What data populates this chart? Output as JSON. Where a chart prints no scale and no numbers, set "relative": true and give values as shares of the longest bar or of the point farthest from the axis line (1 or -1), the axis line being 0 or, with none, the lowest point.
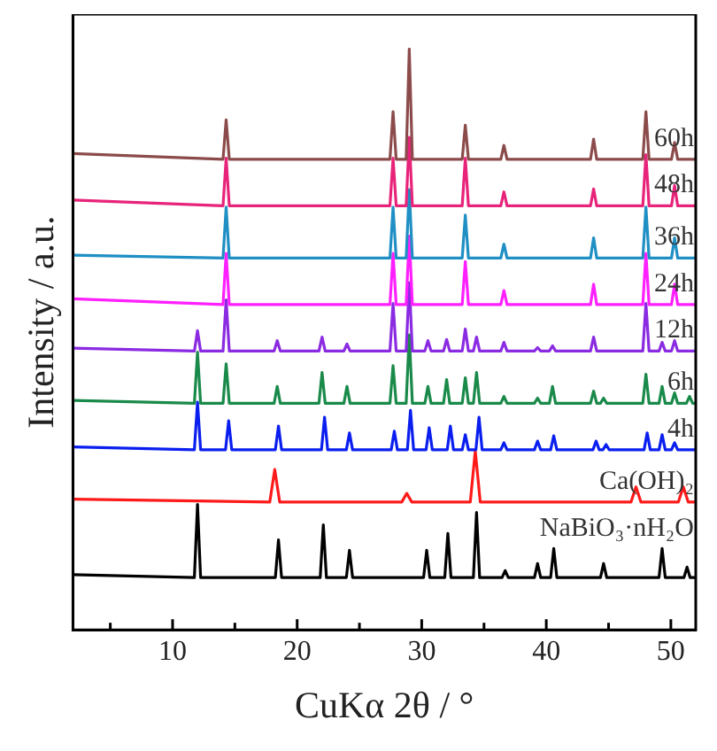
{
  "chart_data": {
    "type": "line",
    "xlabel": "CuKα 2θ / °",
    "ylabel": "Intensity / a.u.",
    "relative": true,
    "xlim": [
      2,
      52
    ],
    "xticks": [
      {
        "value": 5,
        "label": null
      },
      10,
      {
        "value": 15,
        "label": null
      },
      20,
      {
        "value": 25,
        "label": null
      },
      30,
      {
        "value": 35,
        "label": null
      },
      40,
      {
        "value": 45,
        "label": null
      },
      50
    ],
    "tick_labels": "x",
    "legend": false,
    "grid": false,
    "marker": "none",
    "line_style": "solid",
    "series": [
      {
        "name": "60h",
        "color": "#8c4b4b",
        "x": [
          2,
          14.05,
          14.3,
          14.55,
          27.45,
          27.7,
          27.95,
          28.75,
          29,
          29.25,
          33.25,
          33.5,
          33.75,
          36.35,
          36.6,
          36.85,
          43.55,
          43.8,
          44.05,
          47.75,
          48,
          48.25,
          50.05,
          50.3,
          50.55,
          52
        ],
        "values": [
          0.82,
          0.81,
          0.878,
          0.81,
          0.81,
          0.892,
          0.81,
          0.81,
          1,
          0.81,
          0.81,
          0.869,
          0.81,
          0.81,
          0.834,
          0.81,
          0.81,
          0.845,
          0.81,
          0.81,
          0.892,
          0.81,
          0.81,
          0.839,
          0.81,
          0.81
        ]
      },
      {
        "name": "48h",
        "color": "#e8237a",
        "x": [
          2,
          14.05,
          14.3,
          14.55,
          27.45,
          27.7,
          27.95,
          28.75,
          29,
          29.25,
          33.25,
          33.5,
          33.75,
          36.35,
          36.6,
          36.85,
          43.55,
          43.8,
          44.05,
          47.75,
          48,
          48.25,
          50.05,
          50.3,
          50.55,
          52
        ],
        "values": [
          0.74,
          0.73,
          0.812,
          0.73,
          0.73,
          0.812,
          0.73,
          0.73,
          0.848,
          0.73,
          0.73,
          0.812,
          0.73,
          0.73,
          0.754,
          0.73,
          0.73,
          0.759,
          0.73,
          0.73,
          0.818,
          0.73,
          0.73,
          0.765,
          0.73,
          0.73
        ]
      },
      {
        "name": "36h",
        "color": "#1f8fc4",
        "x": [
          2,
          14.05,
          14.3,
          14.55,
          27.45,
          27.7,
          27.95,
          28.75,
          29,
          29.25,
          33.25,
          33.5,
          33.75,
          36.35,
          36.6,
          36.85,
          43.55,
          43.8,
          44.05,
          47.75,
          48,
          48.25,
          50.05,
          50.3,
          50.55,
          52
        ],
        "values": [
          0.645,
          0.64,
          0.728,
          0.64,
          0.64,
          0.728,
          0.64,
          0.64,
          0.758,
          0.64,
          0.64,
          0.714,
          0.64,
          0.64,
          0.664,
          0.64,
          0.64,
          0.675,
          0.64,
          0.64,
          0.728,
          0.64,
          0.64,
          0.675,
          0.64,
          0.64
        ]
      },
      {
        "name": "24h",
        "color": "#ff1fff",
        "x": [
          2,
          14.05,
          14.3,
          14.55,
          27.45,
          27.7,
          27.95,
          28.75,
          29,
          29.25,
          33.25,
          33.5,
          33.75,
          36.35,
          36.6,
          36.85,
          43.55,
          43.8,
          44.05,
          47.75,
          48,
          48.25,
          50.05,
          50.3,
          50.55,
          52
        ],
        "values": [
          0.57,
          0.56,
          0.648,
          0.56,
          0.56,
          0.648,
          0.56,
          0.56,
          0.678,
          0.56,
          0.56,
          0.634,
          0.56,
          0.56,
          0.584,
          0.56,
          0.56,
          0.595,
          0.56,
          0.56,
          0.648,
          0.56,
          0.56,
          0.595,
          0.56,
          0.56
        ]
      },
      {
        "name": "12h",
        "color": "#8a2be2",
        "x": [
          2,
          11.75,
          12,
          12.25,
          14.05,
          14.3,
          14.55,
          18.15,
          18.4,
          18.65,
          21.75,
          22,
          22.25,
          23.75,
          24,
          24.25,
          27.45,
          27.7,
          27.95,
          28.75,
          29,
          29.25,
          30.25,
          30.5,
          30.75,
          31.75,
          32,
          32.25,
          33.25,
          33.5,
          33.75,
          34.15,
          34.4,
          34.65,
          36.35,
          36.6,
          36.85,
          39.05,
          39.3,
          39.55,
          40.25,
          40.5,
          40.75,
          43.55,
          43.8,
          44.05,
          47.75,
          48,
          48.25,
          49.05,
          49.3,
          49.55,
          50.05,
          50.3,
          50.55,
          52
        ],
        "values": [
          0.485,
          0.48,
          0.515,
          0.48,
          0.48,
          0.568,
          0.48,
          0.48,
          0.498,
          0.48,
          0.48,
          0.504,
          0.48,
          0.48,
          0.492,
          0.48,
          0.48,
          0.562,
          0.48,
          0.48,
          0.598,
          0.48,
          0.48,
          0.498,
          0.48,
          0.48,
          0.5,
          0.48,
          0.48,
          0.518,
          0.48,
          0.48,
          0.504,
          0.48,
          0.48,
          0.495,
          0.48,
          0.48,
          0.486,
          0.48,
          0.48,
          0.489,
          0.48,
          0.48,
          0.504,
          0.48,
          0.48,
          0.562,
          0.48,
          0.48,
          0.495,
          0.48,
          0.48,
          0.498,
          0.48,
          0.48
        ]
      },
      {
        "name": "6h",
        "color": "#1a8a4a",
        "x": [
          2,
          11.75,
          12,
          12.25,
          14.05,
          14.3,
          14.55,
          18.15,
          18.4,
          18.65,
          21.75,
          22,
          22.25,
          23.75,
          24,
          24.25,
          27.45,
          27.7,
          27.95,
          28.75,
          29,
          29.25,
          30.25,
          30.5,
          30.75,
          31.75,
          32,
          32.25,
          33.25,
          33.5,
          33.75,
          34.15,
          34.4,
          34.65,
          36.35,
          36.6,
          36.85,
          39.05,
          39.3,
          39.55,
          40.25,
          40.5,
          40.75,
          43.55,
          43.8,
          44.05,
          44.35,
          44.6,
          44.85,
          47.75,
          48,
          48.25,
          49.05,
          49.3,
          49.55,
          50.05,
          50.3,
          50.55,
          51.25,
          51.5,
          51.75,
          52
        ],
        "values": [
          0.395,
          0.39,
          0.478,
          0.39,
          0.39,
          0.458,
          0.39,
          0.39,
          0.419,
          0.39,
          0.39,
          0.443,
          0.39,
          0.39,
          0.419,
          0.39,
          0.39,
          0.455,
          0.39,
          0.39,
          0.508,
          0.39,
          0.39,
          0.419,
          0.39,
          0.39,
          0.431,
          0.39,
          0.39,
          0.434,
          0.39,
          0.39,
          0.443,
          0.39,
          0.39,
          0.402,
          0.39,
          0.39,
          0.399,
          0.39,
          0.39,
          0.419,
          0.39,
          0.39,
          0.411,
          0.39,
          0.39,
          0.399,
          0.39,
          0.39,
          0.44,
          0.39,
          0.39,
          0.419,
          0.39,
          0.39,
          0.408,
          0.39,
          0.39,
          0.402,
          0.39,
          0.39
        ]
      },
      {
        "name": "4h",
        "color": "#0a1fef",
        "x": [
          2,
          11.75,
          12,
          12.25,
          14.25,
          14.5,
          14.75,
          18.25,
          18.5,
          18.75,
          21.95,
          22.2,
          22.45,
          23.95,
          24.2,
          24.45,
          27.55,
          27.8,
          28.05,
          28.85,
          29.1,
          29.35,
          30.35,
          30.6,
          30.85,
          32.05,
          32.3,
          32.55,
          33.25,
          33.5,
          33.75,
          34.35,
          34.6,
          34.85,
          36.35,
          36.6,
          36.85,
          39.05,
          39.3,
          39.55,
          40.35,
          40.6,
          40.85,
          43.75,
          44,
          44.25,
          44.55,
          44.8,
          45.05,
          47.85,
          48.1,
          48.35,
          49.05,
          49.3,
          49.55,
          50.05,
          50.3,
          50.55,
          52
        ],
        "values": [
          0.315,
          0.31,
          0.392,
          0.31,
          0.31,
          0.36,
          0.31,
          0.31,
          0.351,
          0.31,
          0.31,
          0.366,
          0.31,
          0.31,
          0.339,
          0.31,
          0.31,
          0.342,
          0.31,
          0.31,
          0.378,
          0.31,
          0.31,
          0.348,
          0.31,
          0.31,
          0.351,
          0.31,
          0.31,
          0.336,
          0.31,
          0.31,
          0.366,
          0.31,
          0.31,
          0.322,
          0.31,
          0.31,
          0.325,
          0.31,
          0.31,
          0.334,
          0.31,
          0.31,
          0.325,
          0.31,
          0.31,
          0.319,
          0.31,
          0.31,
          0.339,
          0.31,
          0.31,
          0.336,
          0.31,
          0.31,
          0.322,
          0.31,
          0.31
        ]
      },
      {
        "name": "Ca(OH)₂",
        "color": "#ff1a1a",
        "x": [
          2,
          17.8,
          18.2,
          18.6,
          28.4,
          28.8,
          29.2,
          33.9,
          34.3,
          34.7,
          46.8,
          47.2,
          47.6,
          50.6,
          51,
          51.4,
          52
        ],
        "values": [
          0.225,
          0.22,
          0.276,
          0.22,
          0.22,
          0.235,
          0.22,
          0.22,
          0.308,
          0.22,
          0.22,
          0.246,
          0.22,
          0.22,
          0.246,
          0.22,
          0.22
        ]
      },
      {
        "name": "NaBiO₃·nH₂O",
        "color": "#000000",
        "x": [
          2,
          11.75,
          12,
          12.25,
          18.25,
          18.5,
          18.75,
          21.85,
          22.1,
          22.35,
          23.95,
          24.2,
          24.45,
          30.15,
          30.4,
          30.65,
          31.85,
          32.1,
          32.35,
          34.15,
          34.4,
          34.65,
          36.45,
          36.7,
          36.95,
          39.05,
          39.3,
          39.55,
          40.35,
          40.6,
          40.85,
          44.35,
          44.6,
          44.85,
          49.05,
          49.3,
          49.55,
          51.05,
          51.3,
          51.55,
          52
        ],
        "values": [
          0.095,
          0.09,
          0.216,
          0.09,
          0.09,
          0.155,
          0.09,
          0.09,
          0.181,
          0.09,
          0.09,
          0.137,
          0.09,
          0.09,
          0.137,
          0.09,
          0.09,
          0.166,
          0.09,
          0.09,
          0.202,
          0.09,
          0.09,
          0.102,
          0.09,
          0.09,
          0.114,
          0.09,
          0.09,
          0.14,
          0.09,
          0.09,
          0.114,
          0.09,
          0.09,
          0.14,
          0.09,
          0.09,
          0.108,
          0.09,
          0.09
        ]
      }
    ]
  }
}
